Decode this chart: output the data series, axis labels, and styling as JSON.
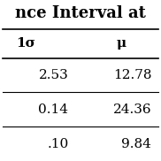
{
  "title": "nce Interval at",
  "col_headers": [
    "1σ",
    "μ"
  ],
  "rows": [
    [
      "2.53",
      "12.78"
    ],
    [
      "0.14",
      "24.36"
    ],
    [
      ".10",
      "9.84"
    ]
  ],
  "background_color": "#ffffff",
  "font_size": 11,
  "header_font_size": 11,
  "title_font_size": 13
}
